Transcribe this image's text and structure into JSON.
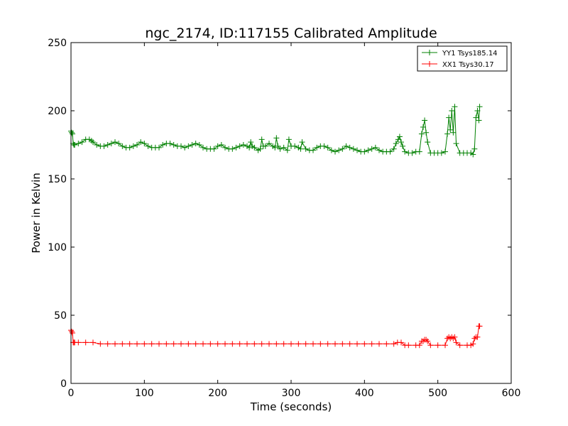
{
  "chart_data": {
    "type": "line",
    "title": "ngc_2174, ID:117155 Calibrated Amplitude",
    "xlabel": "Time (seconds)",
    "ylabel": "Power in Kelvin",
    "xlim": [
      0,
      600
    ],
    "ylim": [
      0,
      250
    ],
    "xticks": [
      0,
      100,
      200,
      300,
      400,
      500,
      600
    ],
    "yticks": [
      0,
      50,
      100,
      150,
      200,
      250
    ],
    "grid": false,
    "legend_position": "top-right",
    "marker": "+",
    "series": [
      {
        "name": "YY1 Tsys185.14",
        "color": "#008000",
        "x": [
          0,
          1,
          2,
          3,
          4,
          5,
          10,
          15,
          20,
          25,
          28,
          30,
          35,
          40,
          45,
          50,
          55,
          60,
          65,
          70,
          75,
          80,
          85,
          90,
          95,
          100,
          105,
          110,
          115,
          120,
          125,
          130,
          135,
          140,
          145,
          150,
          155,
          160,
          165,
          170,
          175,
          180,
          185,
          190,
          195,
          200,
          205,
          210,
          215,
          220,
          225,
          230,
          235,
          240,
          243,
          245,
          247,
          250,
          255,
          258,
          260,
          262,
          265,
          270,
          275,
          278,
          280,
          282,
          285,
          290,
          295,
          297,
          300,
          305,
          310,
          313,
          315,
          320,
          325,
          330,
          335,
          340,
          345,
          350,
          355,
          360,
          365,
          370,
          375,
          380,
          385,
          390,
          395,
          400,
          405,
          410,
          415,
          420,
          425,
          430,
          435,
          440,
          443,
          446,
          448,
          450,
          452,
          455,
          460,
          465,
          470,
          475,
          478,
          480,
          482,
          484,
          486,
          490,
          495,
          500,
          505,
          510,
          513,
          515,
          517,
          519,
          521,
          523,
          525,
          530,
          535,
          540,
          545,
          548,
          550,
          552,
          554,
          556
        ],
        "values": [
          185,
          184,
          183,
          176,
          175,
          175,
          176,
          177,
          179,
          179,
          178,
          177,
          175,
          174,
          174,
          175,
          176,
          177,
          176,
          174,
          173,
          173,
          174,
          175,
          177,
          176,
          174,
          173,
          173,
          173,
          175,
          176,
          176,
          175,
          174,
          174,
          173,
          174,
          175,
          176,
          175,
          173,
          172,
          172,
          172,
          174,
          175,
          173,
          172,
          172,
          173,
          174,
          175,
          174,
          173,
          177,
          174,
          173,
          171,
          172,
          179,
          174,
          174,
          176,
          174,
          173,
          180,
          174,
          172,
          173,
          171,
          179,
          174,
          174,
          173,
          172,
          177,
          172,
          171,
          171,
          173,
          174,
          174,
          173,
          171,
          170,
          171,
          172,
          174,
          173,
          172,
          171,
          170,
          170,
          171,
          172,
          173,
          171,
          170,
          170,
          170,
          172,
          176,
          179,
          181,
          177,
          174,
          170,
          169,
          169,
          170,
          170,
          183,
          188,
          193,
          184,
          177,
          169,
          169,
          169,
          169,
          170,
          183,
          195,
          186,
          200,
          184,
          203,
          176,
          169,
          169,
          169,
          169,
          168,
          172,
          195,
          200,
          193
        ],
        "values_end_note": "",
        "tail_points": {
          "x": [
            557
          ],
          "y": [
            203
          ]
        }
      },
      {
        "name": "XX1 Tsys30.17",
        "color": "#ff0000",
        "x": [
          0,
          1,
          2,
          3,
          4,
          5,
          10,
          20,
          30,
          40,
          50,
          60,
          70,
          80,
          90,
          100,
          110,
          120,
          130,
          140,
          150,
          160,
          170,
          180,
          190,
          200,
          210,
          220,
          230,
          240,
          250,
          260,
          270,
          280,
          290,
          300,
          310,
          320,
          330,
          340,
          350,
          360,
          370,
          380,
          390,
          400,
          410,
          420,
          430,
          440,
          445,
          450,
          455,
          460,
          470,
          475,
          478,
          480,
          482,
          484,
          486,
          490,
          500,
          510,
          513,
          515,
          517,
          519,
          521,
          523,
          525,
          530,
          540,
          545,
          548,
          550,
          552,
          554,
          556
        ],
        "values": [
          39,
          38,
          37,
          30,
          30,
          30,
          30,
          30,
          30,
          29,
          29,
          29,
          29,
          29,
          29,
          29,
          29,
          29,
          29,
          29,
          29,
          29,
          29,
          29,
          29,
          29,
          29,
          29,
          29,
          29,
          29,
          29,
          29,
          29,
          29,
          29,
          29,
          29,
          29,
          29,
          29,
          29,
          29,
          29,
          29,
          29,
          29,
          29,
          29,
          29,
          30,
          30,
          28,
          28,
          28,
          28,
          31,
          31,
          32,
          32,
          31,
          28,
          28,
          28,
          33,
          34,
          33,
          34,
          33,
          34,
          30,
          28,
          28,
          28,
          29,
          33,
          34,
          34,
          42
        ],
        "tail_points": {
          "x": [
            557
          ],
          "y": [
            42
          ]
        }
      }
    ]
  }
}
